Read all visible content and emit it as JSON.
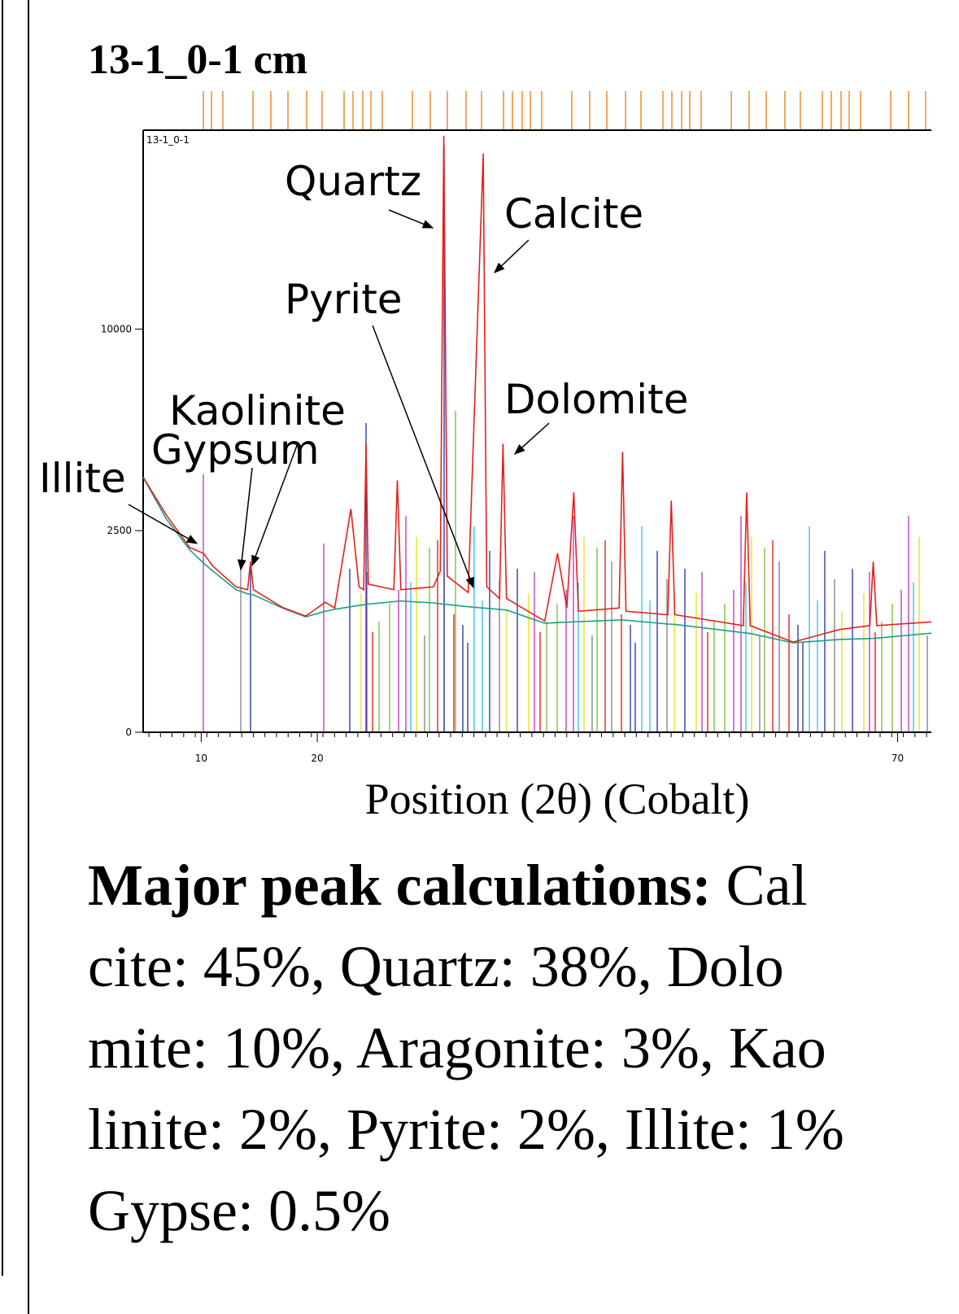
{
  "heading": "13-1_0-1 cm",
  "chart_data": {
    "type": "line",
    "label": "13-1_0-1",
    "xlabel": "Position (2θ) (Cobalt)",
    "x": [
      5,
      7,
      9,
      10.2,
      11,
      13,
      14,
      14.25,
      14.5,
      17,
      19,
      20.7,
      21.5,
      22.9,
      23.6,
      24,
      24.2,
      24.4,
      26.6,
      26.9,
      27.2,
      30,
      30.6,
      30.9,
      31.2,
      33,
      34.3,
      34.6,
      35.7,
      36,
      36.3,
      39.6,
      40.7,
      41.5,
      42.1,
      42.5,
      46,
      46.3,
      46.6,
      50.2,
      50.5,
      50.8,
      56.7,
      57,
      57.3,
      61,
      65,
      67.6,
      67.9,
      68.2,
      73
    ],
    "series": [
      {
        "color": "#e3211c",
        "values": [
          4000,
          2900,
          2100,
          1970,
          1700,
          1300,
          1250,
          1790,
          1250,
          960,
          830,
          1040,
          950,
          3070,
          1300,
          1250,
          5120,
          1350,
          1250,
          3900,
          1250,
          1300,
          1600,
          21900,
          1500,
          1200,
          20600,
          1300,
          1100,
          5120,
          1100,
          760,
          1970,
          950,
          3540,
          900,
          950,
          4840,
          900,
          850,
          3300,
          850,
          700,
          3540,
          700,
          500,
          650,
          700,
          1790,
          700,
          750
        ]
      },
      {
        "color": "#1f9e8a",
        "values": [
          4000,
          2800,
          2050,
          1760,
          1600,
          1250,
          1180,
          1170,
          1160,
          950,
          820,
          900,
          930,
          970,
          990,
          1000,
          1005,
          1010,
          1050,
          1055,
          1060,
          1030,
          1015,
          1010,
          1005,
          970,
          950,
          945,
          930,
          925,
          920,
          730,
          740,
          745,
          750,
          752,
          774,
          774,
          772,
          720,
          718,
          716,
          610,
          605,
          600,
          492,
          530,
          540,
          542,
          545,
          605
        ]
      }
    ],
    "xlim": [
      5,
      73
    ],
    "xticks": [
      10,
      20,
      70
    ],
    "ylim": [
      0,
      22000
    ],
    "yticks": [
      0,
      2500,
      10000
    ],
    "yscale": "sqrt",
    "annotations": [
      "Quartz",
      "Calcite",
      "Pyrite",
      "Dolomite",
      "Kaolinite",
      "Gypsum",
      "Illite"
    ]
  },
  "paragraph": {
    "label": "Major peak calculations:",
    "lines": [
      "Cal",
      "cite: 45%, Quartz: 38%, Dolo",
      "mite: 10%, Aragonite: 3%, Kao",
      "linite: 2%, Pyrite: 2%, Illite: 1%",
      "Gypse: 0.5%"
    ]
  }
}
